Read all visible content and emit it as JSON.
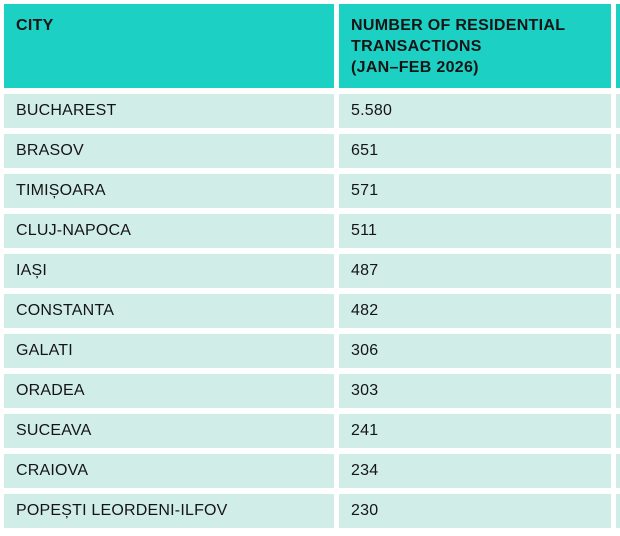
{
  "chart_data": {
    "type": "table",
    "columns": [
      {
        "label": "CITY"
      },
      {
        "label": "NUMBER OF RESIDENTIAL\nTRANSACTIONS\n(JAN–FEB 2026)"
      }
    ],
    "rows": [
      {
        "city": "BUCHAREST",
        "value": "5.580",
        "value_numeric": 5580
      },
      {
        "city": "BRASOV",
        "value": "651",
        "value_numeric": 651
      },
      {
        "city": "TIMIȘOARA",
        "value": "571",
        "value_numeric": 571
      },
      {
        "city": "CLUJ-NAPOCA",
        "value": "511",
        "value_numeric": 511
      },
      {
        "city": "IAȘI",
        "value": "487",
        "value_numeric": 487
      },
      {
        "city": "CONSTANTA",
        "value": "482",
        "value_numeric": 482
      },
      {
        "city": "GALATI",
        "value": "306",
        "value_numeric": 306
      },
      {
        "city": "ORADEA",
        "value": "303",
        "value_numeric": 303
      },
      {
        "city": "SUCEAVA",
        "value": "241",
        "value_numeric": 241
      },
      {
        "city": "CRAIOVA",
        "value": "234",
        "value_numeric": 234
      },
      {
        "city": "POPEȘTI LEORDENI-ILFOV",
        "value": "230",
        "value_numeric": 230
      }
    ]
  },
  "colors": {
    "header_bg": "#1cd0c4",
    "row_bg": "#d1ede8",
    "text": "#151515",
    "background": "#ffffff"
  }
}
